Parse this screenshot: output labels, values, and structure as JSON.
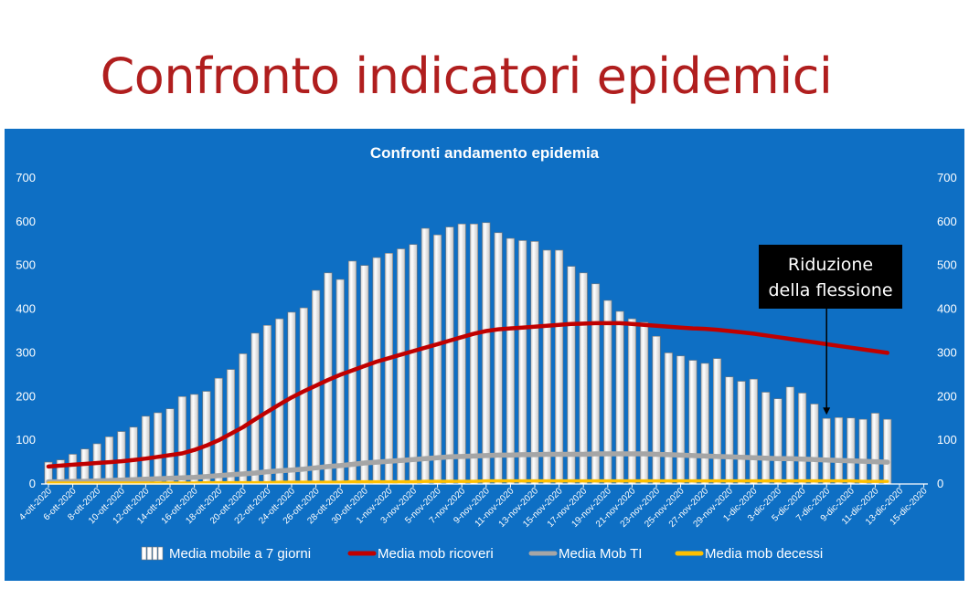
{
  "slide": {
    "title": "Confronto indicatori epidemici"
  },
  "chart_data": {
    "type": "bar",
    "title": "Confronti andamento epidemia",
    "ylim": [
      0,
      700
    ],
    "yticks": [
      0,
      100,
      200,
      300,
      400,
      500,
      600,
      700
    ],
    "grid": false,
    "legend_position": "bottom",
    "x_tick_labels": [
      "4-ott-2020",
      "6-ott-2020",
      "8-ott-2020",
      "10-ott-2020",
      "12-ott-2020",
      "14-ott-2020",
      "16-ott-2020",
      "18-ott-2020",
      "20-ott-2020",
      "22-ott-2020",
      "24-ott-2020",
      "26-ott-2020",
      "28-ott-2020",
      "30-ott-2020",
      "1-nov-2020",
      "3-nov-2020",
      "5-nov-2020",
      "7-nov-2020",
      "9-nov-2020",
      "11-nov-2020",
      "13-nov-2020",
      "15-nov-2020",
      "17-nov-2020",
      "19-nov-2020",
      "21-nov-2020",
      "23-nov-2020",
      "25-nov-2020",
      "27-nov-2020",
      "29-nov-2020",
      "1-dic-2020",
      "3-dic-2020",
      "5-dic-2020",
      "7-dic-2020",
      "9-dic-2020",
      "11-dic-2020",
      "13-dic-2020",
      "15-dic-2020"
    ],
    "series": [
      {
        "name": "Media mobile a 7 giorni",
        "kind": "bar",
        "color": "#ffffff",
        "values": [
          50,
          55,
          68,
          80,
          92,
          108,
          120,
          130,
          155,
          163,
          172,
          200,
          205,
          212,
          242,
          262,
          298,
          345,
          363,
          378,
          393,
          403,
          443,
          483,
          468,
          510,
          500,
          518,
          528,
          538,
          548,
          585,
          570,
          588,
          595,
          595,
          598,
          575,
          562,
          557,
          555,
          535,
          535,
          498,
          483,
          458,
          420,
          395,
          378,
          370,
          338,
          300,
          293,
          283,
          276,
          287,
          245,
          235,
          240,
          210,
          195,
          222,
          208,
          183,
          150,
          152,
          151,
          148,
          162,
          148
        ]
      },
      {
        "name": "Media mob ricoveri",
        "kind": "line",
        "color": "#c00000",
        "values": [
          40,
          42,
          44,
          46,
          48,
          50,
          52,
          55,
          58,
          62,
          66,
          70,
          78,
          88,
          100,
          115,
          130,
          148,
          165,
          182,
          198,
          212,
          225,
          238,
          250,
          260,
          270,
          280,
          288,
          296,
          304,
          312,
          320,
          328,
          336,
          344,
          350,
          354,
          356,
          358,
          360,
          362,
          364,
          366,
          367,
          368,
          368,
          368,
          366,
          364,
          362,
          360,
          358,
          356,
          355,
          353,
          350,
          347,
          344,
          340,
          336,
          332,
          328,
          324,
          320,
          316,
          312,
          308,
          304,
          300
        ]
      },
      {
        "name": "Media Mob TI",
        "kind": "line",
        "color": "#a6a6a6",
        "values": [
          5,
          5,
          6,
          6,
          7,
          8,
          9,
          10,
          11,
          12,
          13,
          14,
          15,
          17,
          19,
          21,
          23,
          25,
          28,
          30,
          32,
          34,
          37,
          40,
          42,
          45,
          48,
          50,
          52,
          54,
          56,
          58,
          60,
          62,
          63,
          64,
          65,
          66,
          66,
          67,
          67,
          68,
          68,
          68,
          68,
          69,
          69,
          69,
          69,
          69,
          68,
          67,
          66,
          65,
          64,
          63,
          62,
          61,
          60,
          59,
          58,
          58,
          57,
          56,
          55,
          54,
          53,
          52,
          51,
          50
        ]
      },
      {
        "name": "Media mob decessi",
        "kind": "line",
        "color": "#ffc000",
        "values": [
          2,
          2,
          2,
          2,
          2,
          2,
          2,
          2,
          2,
          2,
          2,
          2,
          2,
          3,
          3,
          3,
          3,
          3,
          3,
          4,
          4,
          4,
          4,
          4,
          4,
          5,
          5,
          5,
          5,
          5,
          5,
          6,
          6,
          6,
          6,
          6,
          7,
          7,
          7,
          7,
          7,
          7,
          7,
          7,
          7,
          7,
          7,
          7,
          7,
          7,
          7,
          7,
          7,
          7,
          7,
          7,
          7,
          7,
          7,
          7,
          7,
          7,
          7,
          7,
          7,
          7,
          7,
          6,
          6,
          6
        ]
      }
    ],
    "annotation": {
      "lines": [
        "Riduzione",
        "della flessione"
      ],
      "points_to_index": 64
    }
  }
}
